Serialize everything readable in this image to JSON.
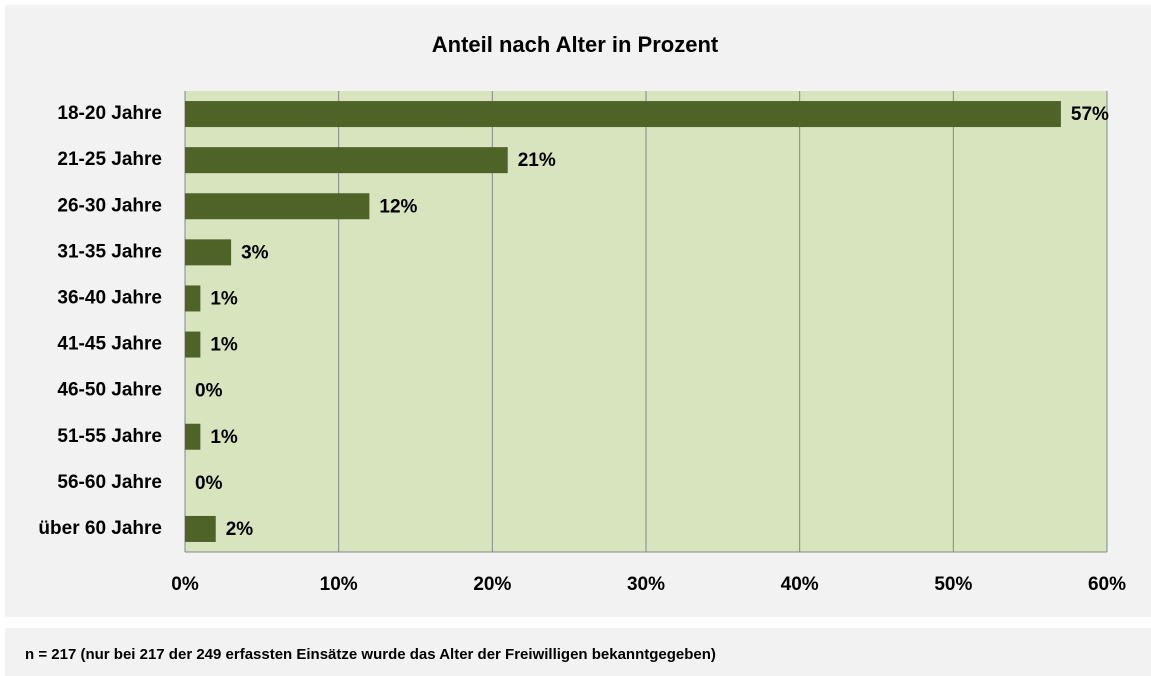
{
  "chart_data": {
    "type": "bar",
    "orientation": "horizontal",
    "title": "Anteil nach Alter in Prozent",
    "categories": [
      "18-20 Jahre",
      "21-25 Jahre",
      "26-30 Jahre",
      "31-35 Jahre",
      "36-40 Jahre",
      "41-45 Jahre",
      "46-50 Jahre",
      "51-55 Jahre",
      "56-60 Jahre",
      "über 60 Jahre"
    ],
    "values": [
      57,
      21,
      12,
      3,
      1,
      1,
      0,
      1,
      0,
      2
    ],
    "value_labels": [
      "57%",
      "21%",
      "12%",
      "3%",
      "1%",
      "1%",
      "0%",
      "1%",
      "0%",
      "2%"
    ],
    "color": "#4f6228",
    "xlim": [
      0,
      60
    ],
    "xticks": [
      {
        "value": 0,
        "label": "0%"
      },
      {
        "value": 10,
        "label": "10%"
      },
      {
        "value": 20,
        "label": "20%"
      },
      {
        "value": 30,
        "label": "30%"
      },
      {
        "value": 40,
        "label": "40%"
      },
      {
        "value": 50,
        "label": "50%"
      },
      {
        "value": 60,
        "label": "60%"
      }
    ],
    "grid": true,
    "footnote": "n = 217 (nur bei 217 der 249 erfassten Einsätze wurde das Alter der Freiwilligen bekanntgegeben)"
  }
}
